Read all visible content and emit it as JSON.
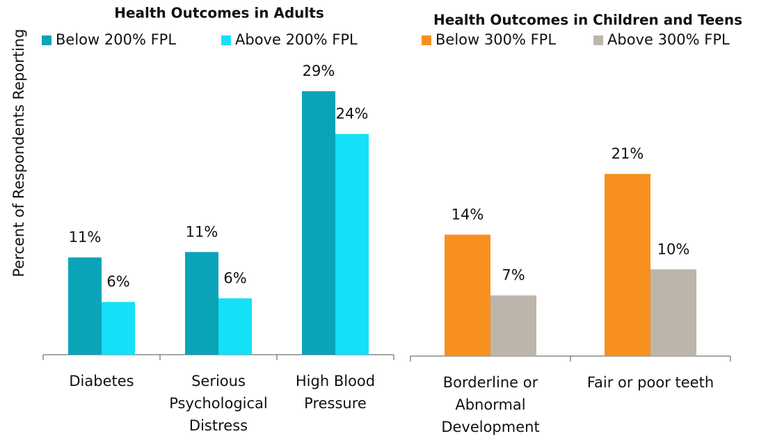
{
  "chart_data": [
    {
      "type": "bar",
      "title": "Health Outcomes in Adults",
      "ylabel": "Percent of Respondents Reporting",
      "categories": [
        "Diabetes",
        "Serious Psychological Distress",
        "High Blood Pressure"
      ],
      "series": [
        {
          "name": "Below 200% FPL",
          "color": "#0aa3b8",
          "values": [
            10.7,
            11.3,
            29.0
          ],
          "value_labels": [
            "11%",
            "11%",
            "29%"
          ]
        },
        {
          "name": "Above 200% FPL",
          "color": "#14e0f7",
          "values": [
            5.8,
            6.2,
            24.3
          ],
          "value_labels": [
            "6%",
            "6%",
            "24%"
          ]
        }
      ],
      "ylim": [
        0,
        32
      ]
    },
    {
      "type": "bar",
      "title": "Health Outcomes in Children and Teens",
      "categories": [
        "Borderline or Abnormal Development",
        "Fair or poor teeth"
      ],
      "series": [
        {
          "name": "Below 300% FPL",
          "color": "#f7901e",
          "values": [
            14.0,
            21.0
          ],
          "value_labels": [
            "14%",
            "21%"
          ]
        },
        {
          "name": "Above 300% FPL",
          "color": "#bdb5ab",
          "values": [
            7.0,
            10.0
          ],
          "value_labels": [
            "7%",
            "10%"
          ]
        }
      ],
      "ylim": [
        0,
        34
      ]
    }
  ]
}
